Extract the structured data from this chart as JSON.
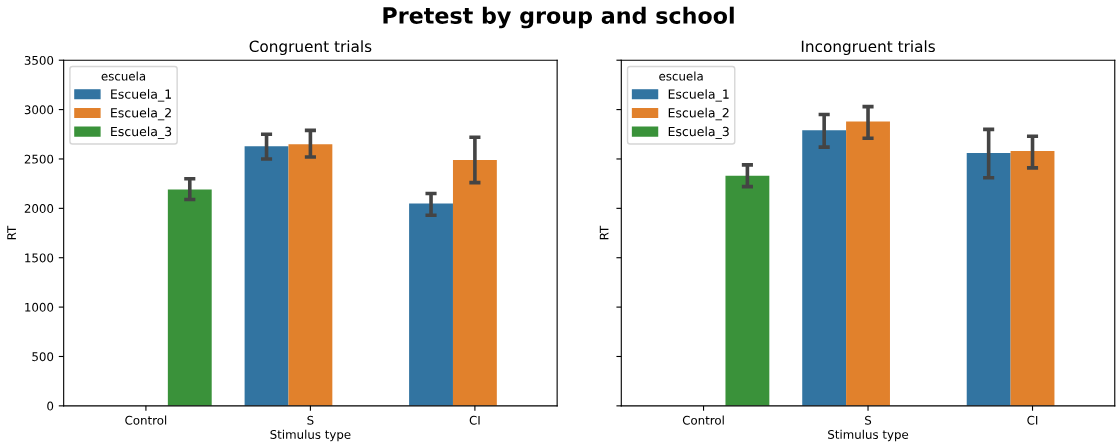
{
  "chart_data": [
    {
      "type": "bar",
      "title": "Congruent trials",
      "xlabel": "Stimulus type",
      "ylabel": "RT",
      "legend_title": "escuela",
      "legend": "top left",
      "categories": [
        "Control",
        "S",
        "CI"
      ],
      "ylim": [
        0,
        3500
      ],
      "yticks": [
        0,
        500,
        1000,
        1500,
        2000,
        2500,
        3000,
        3500
      ],
      "annotations": [
        "Pretest by group and school"
      ],
      "series": [
        {
          "name": "Escuela_1",
          "color": "#3274a1",
          "values": [
            null,
            2630,
            2050
          ],
          "errors": [
            null,
            [
              2500,
              2750
            ],
            [
              1930,
              2150
            ]
          ]
        },
        {
          "name": "Escuela_2",
          "color": "#e1812c",
          "values": [
            null,
            2650,
            2490
          ],
          "errors": [
            null,
            [
              2520,
              2790
            ],
            [
              2260,
              2720
            ]
          ]
        },
        {
          "name": "Escuela_3",
          "color": "#3a923a",
          "values": [
            2190,
            null,
            null
          ],
          "errors": [
            [
              2090,
              2300
            ],
            null,
            null
          ]
        }
      ]
    },
    {
      "type": "bar",
      "title": "Incongruent trials",
      "xlabel": "Stimulus type",
      "ylabel": "RT",
      "legend_title": "escuela",
      "legend": "top left",
      "tick_labels": "x",
      "categories": [
        "Control",
        "S",
        "CI"
      ],
      "ylim": [
        0,
        3500
      ],
      "yticks": [
        0,
        500,
        1000,
        1500,
        2000,
        2500,
        3000,
        3500
      ],
      "series": [
        {
          "name": "Escuela_1",
          "color": "#3274a1",
          "values": [
            null,
            2790,
            2560
          ],
          "errors": [
            null,
            [
              2620,
              2950
            ],
            [
              2310,
              2800
            ]
          ]
        },
        {
          "name": "Escuela_2",
          "color": "#e1812c",
          "values": [
            null,
            2880,
            2580
          ],
          "errors": [
            null,
            [
              2710,
              3030
            ],
            [
              2410,
              2730
            ]
          ]
        },
        {
          "name": "Escuela_3",
          "color": "#3a923a",
          "values": [
            2330,
            null,
            null
          ],
          "errors": [
            [
              2220,
              2440
            ],
            null,
            null
          ]
        }
      ]
    }
  ]
}
